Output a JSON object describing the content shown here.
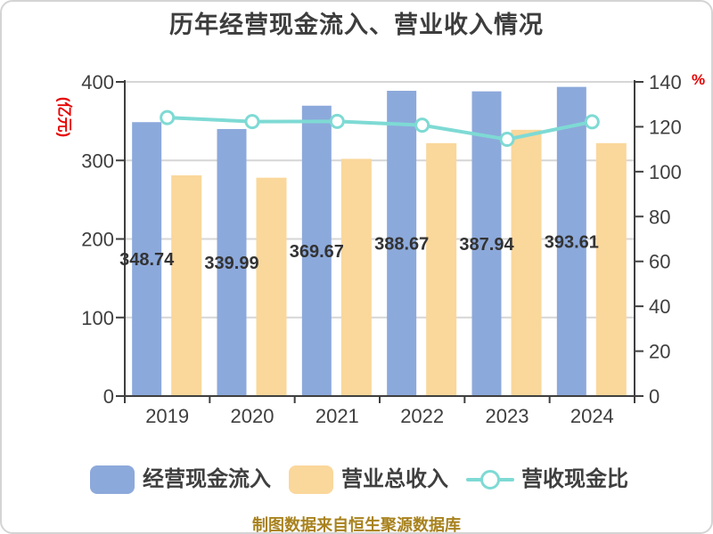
{
  "title": "历年经营现金流入、营业收入情况",
  "footer": "制图数据来自恒生聚源数据库",
  "colors": {
    "cash_bar": "#8CA9DB",
    "revenue_bar": "#FAD79B",
    "ratio_line": "#7EDAD4",
    "marker_fill": "#FFFFFF",
    "axis_line": "#3F3F3F",
    "axis_text": "#3F3F3F",
    "grid_line": "#D6D6D6",
    "data_label": "#333333",
    "title_text": "#3D3D3D",
    "unit_label": "#E60000",
    "footer_text": "#A8821E"
  },
  "legend": {
    "items": [
      {
        "label": "经营现金流入",
        "type": "bar"
      },
      {
        "label": "营业总收入",
        "type": "bar"
      },
      {
        "label": "营收现金比",
        "type": "line"
      }
    ]
  },
  "chart_data": {
    "type": "bar",
    "title": "历年经营现金流入、营业收入情况",
    "categories": [
      "2019",
      "2020",
      "2021",
      "2022",
      "2023",
      "2024"
    ],
    "series": [
      {
        "name": "经营现金流入",
        "type": "bar",
        "axis": "left",
        "unit": "亿元",
        "values": [
          348.74,
          339.99,
          369.67,
          388.67,
          387.94,
          393.61
        ],
        "data_labels": true
      },
      {
        "name": "营业总收入",
        "type": "bar",
        "axis": "left",
        "unit": "亿元",
        "values": [
          281,
          278,
          302,
          322,
          339,
          322
        ],
        "data_labels": false
      },
      {
        "name": "营收现金比",
        "type": "line",
        "axis": "right",
        "unit": "%",
        "values": [
          124.1,
          122.3,
          122.4,
          120.7,
          114.4,
          122.2
        ],
        "data_labels": false
      }
    ],
    "left_axis": {
      "label": "(亿元)",
      "min": 0,
      "max": 400,
      "ticks": [
        0,
        100,
        200,
        300,
        400
      ]
    },
    "right_axis": {
      "label": "%",
      "min": 0,
      "max": 140,
      "ticks": [
        0,
        20,
        40,
        60,
        80,
        100,
        120,
        140
      ]
    },
    "grid": true,
    "legend_position": "bottom"
  }
}
